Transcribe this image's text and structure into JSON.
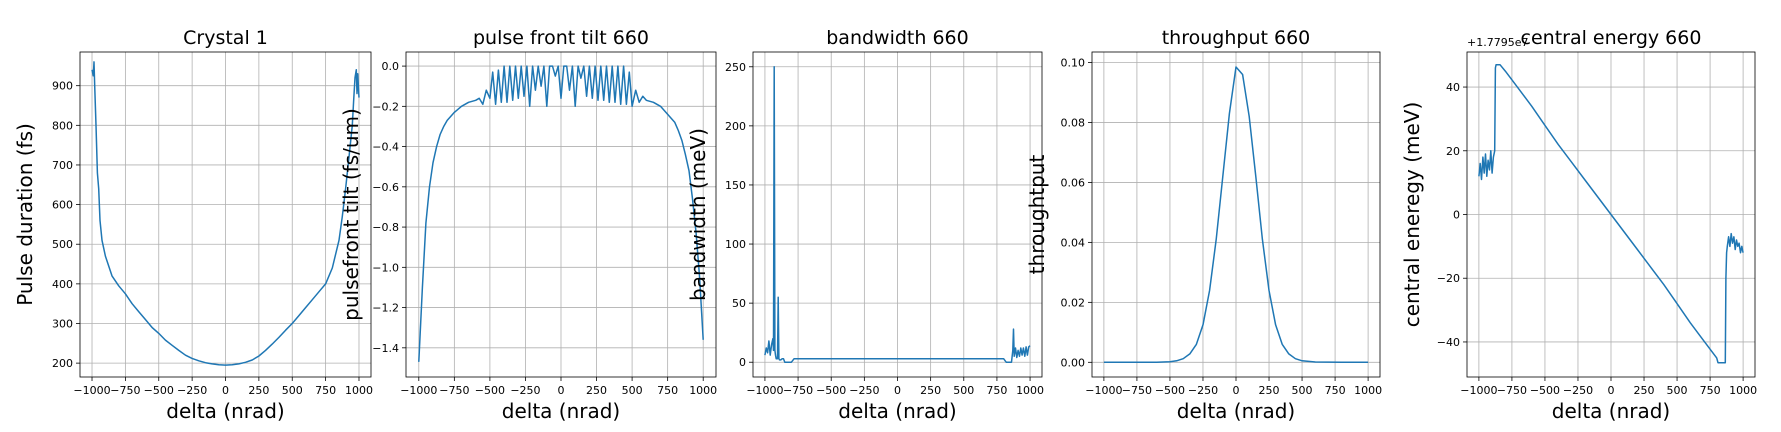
{
  "chart_data": [
    {
      "type": "line",
      "title": "Crystal 1",
      "xlabel": "delta (nrad)",
      "ylabel": "Pulse duration (fs)",
      "xlim": [
        -1090,
        1090
      ],
      "ylim": [
        165,
        985
      ],
      "xticks": [
        -1000,
        -750,
        -500,
        -250,
        0,
        250,
        500,
        750,
        1000
      ],
      "xtick_labels": [
        "−1000",
        "−750",
        "−500",
        "−250",
        "0",
        "250",
        "500",
        "750",
        "1000"
      ],
      "yticks": [
        200,
        300,
        400,
        500,
        600,
        700,
        800,
        900
      ],
      "ytick_labels": [
        "200",
        "300",
        "400",
        "500",
        "600",
        "700",
        "800",
        "900"
      ],
      "grid": true,
      "series": [
        {
          "x": [
            -1000,
            -990,
            -985,
            -980,
            -970,
            -960,
            -950,
            -940,
            -925,
            -900,
            -875,
            -850,
            -800,
            -750,
            -700,
            -650,
            -600,
            -550,
            -500,
            -450,
            -400,
            -350,
            -300,
            -250,
            -200,
            -150,
            -100,
            -50,
            0,
            50,
            100,
            150,
            200,
            250,
            300,
            350,
            400,
            450,
            500,
            550,
            600,
            650,
            700,
            750,
            800,
            850,
            875,
            900,
            925,
            950,
            960,
            970,
            980,
            985,
            990,
            1000
          ],
          "y": [
            940,
            925,
            960,
            900,
            800,
            680,
            640,
            560,
            510,
            470,
            445,
            420,
            395,
            375,
            350,
            330,
            310,
            290,
            275,
            258,
            245,
            232,
            220,
            212,
            206,
            201,
            198,
            196,
            195,
            196,
            198,
            202,
            208,
            218,
            232,
            248,
            265,
            283,
            300,
            320,
            340,
            360,
            380,
            400,
            440,
            510,
            570,
            640,
            720,
            800,
            860,
            920,
            940,
            880,
            930,
            870
          ]
        }
      ]
    },
    {
      "type": "line",
      "title": "pulse front tilt 660",
      "xlabel": "delta (nrad)",
      "ylabel": "pulsefront tilt (fs/um)",
      "xlim": [
        -1090,
        1090
      ],
      "ylim": [
        -1.545,
        0.07
      ],
      "xticks": [
        -1000,
        -750,
        -500,
        -250,
        0,
        250,
        500,
        750,
        1000
      ],
      "xtick_labels": [
        "−1000",
        "−750",
        "−500",
        "−250",
        "0",
        "250",
        "500",
        "750",
        "1000"
      ],
      "yticks": [
        -1.4,
        -1.2,
        -1.0,
        -0.8,
        -0.6,
        -0.4,
        -0.2,
        0.0
      ],
      "ytick_labels": [
        "−1.4",
        "−1.2",
        "−1.0",
        "−0.8",
        "−0.6",
        "−0.4",
        "−0.2",
        "0.0"
      ],
      "grid": true,
      "series": [
        {
          "x": [
            -1000,
            -975,
            -950,
            -925,
            -900,
            -875,
            -850,
            -825,
            -800,
            -750,
            -700,
            -650,
            -600,
            -575,
            -550,
            -525,
            -500,
            -480,
            -460,
            -440,
            -420,
            -400,
            -380,
            -360,
            -340,
            -320,
            -300,
            -280,
            -260,
            -240,
            -220,
            -200,
            -180,
            -160,
            -140,
            -120,
            -100,
            -80,
            -60,
            -40,
            -20,
            0,
            20,
            40,
            60,
            80,
            100,
            120,
            140,
            160,
            180,
            200,
            220,
            240,
            260,
            280,
            300,
            320,
            340,
            360,
            380,
            400,
            420,
            440,
            460,
            480,
            500,
            525,
            550,
            575,
            600,
            650,
            700,
            750,
            800,
            825,
            850,
            875,
            900,
            925,
            950,
            975,
            1000
          ],
          "y": [
            -1.47,
            -1.1,
            -0.78,
            -0.6,
            -0.48,
            -0.4,
            -0.34,
            -0.3,
            -0.27,
            -0.23,
            -0.2,
            -0.18,
            -0.17,
            -0.16,
            -0.19,
            -0.12,
            -0.16,
            -0.03,
            -0.19,
            -0.02,
            -0.18,
            0.0,
            -0.18,
            0.0,
            -0.17,
            0.0,
            -0.16,
            0.0,
            -0.15,
            0.0,
            -0.2,
            0.0,
            -0.12,
            0.0,
            -0.1,
            0.0,
            -0.2,
            0.0,
            0.0,
            -0.05,
            0.0,
            -0.16,
            0.0,
            0.0,
            -0.12,
            0.0,
            -0.2,
            0.0,
            -0.06,
            0.0,
            -0.15,
            0.0,
            -0.16,
            0.0,
            -0.17,
            0.0,
            -0.17,
            0.0,
            -0.18,
            0.0,
            -0.18,
            0.0,
            -0.19,
            0.0,
            -0.19,
            -0.03,
            -0.2,
            -0.12,
            -0.18,
            -0.15,
            -0.17,
            -0.18,
            -0.2,
            -0.24,
            -0.28,
            -0.32,
            -0.37,
            -0.44,
            -0.52,
            -0.66,
            -0.83,
            -1.05,
            -1.36
          ]
        }
      ]
    },
    {
      "type": "line",
      "title": "bandwidth 660",
      "xlabel": "delta (nrad)",
      "ylabel": "bandwidth (meV)",
      "xlim": [
        -1090,
        1090
      ],
      "ylim": [
        -12.5,
        262.5
      ],
      "xticks": [
        -1000,
        -750,
        -500,
        -250,
        0,
        250,
        500,
        750,
        1000
      ],
      "xtick_labels": [
        "−1000",
        "−750",
        "−500",
        "−250",
        "0",
        "250",
        "500",
        "750",
        "1000"
      ],
      "yticks": [
        0,
        50,
        100,
        150,
        200,
        250
      ],
      "ytick_labels": [
        "0",
        "50",
        "100",
        "150",
        "200",
        "250"
      ],
      "grid": true,
      "series": [
        {
          "x": [
            -1000,
            -990,
            -980,
            -970,
            -960,
            -950,
            -940,
            -935,
            -930,
            -925,
            -920,
            -915,
            -905,
            -900,
            -895,
            -890,
            -880,
            -870,
            -860,
            -850,
            -840,
            -800,
            -780,
            -750,
            -700,
            -650,
            -600,
            -550,
            -500,
            -450,
            -400,
            -350,
            -300,
            -250,
            -200,
            -150,
            -100,
            -50,
            0,
            50,
            100,
            150,
            200,
            250,
            300,
            350,
            400,
            450,
            500,
            550,
            600,
            650,
            700,
            750,
            780,
            800,
            820,
            840,
            850,
            860,
            870,
            875,
            880,
            890,
            900,
            910,
            920,
            930,
            940,
            950,
            960,
            970,
            980,
            990,
            1000
          ],
          "y": [
            6,
            12,
            8,
            18,
            6,
            15,
            20,
            10,
            250,
            10,
            6,
            3,
            3,
            55,
            3,
            2,
            2,
            3,
            3,
            0,
            0,
            0,
            3,
            3,
            3,
            3,
            3,
            3,
            3,
            3,
            3,
            3,
            3,
            3,
            3,
            3,
            3,
            3,
            3,
            3,
            3,
            3,
            3,
            3,
            3,
            3,
            3,
            3,
            3,
            3,
            3,
            3,
            3,
            3,
            3,
            3,
            0,
            0,
            0,
            0,
            10,
            28,
            5,
            12,
            4,
            10,
            5,
            12,
            6,
            12,
            5,
            13,
            6,
            13,
            14
          ]
        }
      ]
    },
    {
      "type": "line",
      "title": "throughput 660",
      "xlabel": "delta (nrad)",
      "ylabel": "throughtput",
      "xlim": [
        -1090,
        1090
      ],
      "ylim": [
        -0.0049,
        0.1035
      ],
      "xticks": [
        -1000,
        -750,
        -500,
        -250,
        0,
        250,
        500,
        750,
        1000
      ],
      "xtick_labels": [
        "−1000",
        "−750",
        "−500",
        "−250",
        "0",
        "250",
        "500",
        "750",
        "1000"
      ],
      "yticks": [
        0.0,
        0.02,
        0.04,
        0.06,
        0.08,
        0.1
      ],
      "ytick_labels": [
        "0.00",
        "0.02",
        "0.04",
        "0.06",
        "0.08",
        "0.10"
      ],
      "grid": true,
      "series": [
        {
          "x": [
            -1000,
            -800,
            -600,
            -500,
            -450,
            -400,
            -350,
            -300,
            -250,
            -200,
            -150,
            -100,
            -50,
            0,
            50,
            100,
            150,
            200,
            250,
            300,
            350,
            400,
            450,
            500,
            600,
            800,
            1000
          ],
          "y": [
            0.0,
            0.0,
            0.0,
            0.0002,
            0.0005,
            0.0012,
            0.0028,
            0.006,
            0.0125,
            0.024,
            0.041,
            0.062,
            0.083,
            0.0985,
            0.096,
            0.082,
            0.062,
            0.041,
            0.024,
            0.0125,
            0.006,
            0.0028,
            0.0012,
            0.0005,
            0.0001,
            0.0,
            0.0
          ]
        }
      ]
    },
    {
      "type": "line",
      "title": "central energy 660",
      "offset_label": "+1.7795e7",
      "xlabel": "delta (nrad)",
      "ylabel": "central eneregy (meV)",
      "xlim": [
        -1090,
        1090
      ],
      "ylim": [
        -51,
        51
      ],
      "xticks": [
        -1000,
        -750,
        -500,
        -250,
        0,
        250,
        500,
        750,
        1000
      ],
      "xtick_labels": [
        "−1000",
        "−750",
        "−500",
        "−250",
        "0",
        "250",
        "500",
        "750",
        "1000"
      ],
      "yticks": [
        -40,
        -20,
        0,
        20,
        40
      ],
      "ytick_labels": [
        "−40",
        "−20",
        "0",
        "20",
        "40"
      ],
      "grid": true,
      "series": [
        {
          "x": [
            -1000,
            -990,
            -980,
            -970,
            -960,
            -950,
            -940,
            -930,
            -920,
            -910,
            -900,
            -890,
            -880,
            -875,
            -870,
            -850,
            -840,
            -800,
            -700,
            -600,
            -500,
            -400,
            -300,
            -200,
            -100,
            0,
            100,
            200,
            300,
            400,
            500,
            600,
            700,
            800,
            810,
            840,
            865,
            870,
            875,
            880,
            890,
            900,
            910,
            920,
            930,
            940,
            950,
            960,
            970,
            980,
            990,
            1000
          ],
          "y": [
            12,
            16,
            11,
            18,
            13,
            19,
            12,
            17,
            14,
            20,
            13,
            18,
            20,
            46,
            47,
            47,
            47,
            45,
            39.5,
            34,
            28,
            22,
            16.5,
            11,
            5.5,
            0,
            -5.5,
            -11,
            -16.5,
            -22,
            -28,
            -34,
            -39.5,
            -45,
            -46.5,
            -46.5,
            -46.5,
            -20,
            -12,
            -10,
            -7,
            -10,
            -6,
            -9,
            -7,
            -11,
            -8,
            -10,
            -9,
            -12,
            -10,
            -12
          ]
        }
      ]
    }
  ]
}
